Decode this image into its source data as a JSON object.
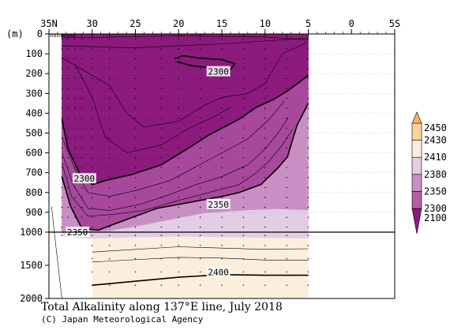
{
  "chart_data": {
    "type": "heatmap",
    "title": "Total Alkalinity along 137°E line, July 2018",
    "credit": "(C) Japan Meteorological Agency",
    "x_axis": {
      "ticks": [
        {
          "value": 35,
          "label": "35N"
        },
        {
          "value": 30,
          "label": "30"
        },
        {
          "value": 25,
          "label": "25"
        },
        {
          "value": 20,
          "label": "20"
        },
        {
          "value": 15,
          "label": "15"
        },
        {
          "value": 10,
          "label": "10"
        },
        {
          "value": 5,
          "label": "5"
        },
        {
          "value": 0,
          "label": "0"
        },
        {
          "value": -5,
          "label": "5S"
        }
      ],
      "range": [
        35,
        -5
      ]
    },
    "y_axis": {
      "unit_label": "(m)",
      "ticks": [
        0,
        100,
        200,
        300,
        400,
        500,
        600,
        700,
        800,
        900,
        1000,
        1500,
        2000
      ],
      "tick_labels": [
        "0",
        "100",
        "200",
        "300",
        "400",
        "500",
        "600",
        "700",
        "800",
        "900",
        "1000",
        "1500",
        "2000"
      ],
      "range": [
        0,
        2000
      ],
      "scale_break": 1000
    },
    "legend": {
      "levels": [
        "2100",
        "2300",
        "2350",
        "2380",
        "2410",
        "2430",
        "2450"
      ],
      "colors": [
        "#8c1a7d",
        "#b35fa7",
        "#c98fc4",
        "#e3cde5",
        "#fceedd",
        "#fbd49a",
        "#f7b45c"
      ],
      "placement": "right"
    },
    "contour_labels": [
      {
        "text": "2300",
        "lat": 15.4,
        "depth": 190
      },
      {
        "text": "2300",
        "lat": 30.9,
        "depth": 730
      },
      {
        "text": "2350",
        "lat": 15.4,
        "depth": 860
      },
      {
        "text": "2350",
        "lat": 31.7,
        "depth": 1000
      },
      {
        "text": "2400",
        "lat": 15.4,
        "depth": 1600
      }
    ],
    "bands": [
      {
        "level": "2100-2300",
        "color": "#8c1a7d",
        "polygon": [
          [
            33.5,
            0
          ],
          [
            5,
            0
          ],
          [
            5,
            210
          ],
          [
            7.5,
            290
          ],
          [
            9,
            330
          ],
          [
            11,
            370
          ],
          [
            13,
            430
          ],
          [
            16.5,
            510
          ],
          [
            19,
            580
          ],
          [
            22,
            660
          ],
          [
            25.5,
            710
          ],
          [
            28.5,
            740
          ],
          [
            30,
            760
          ],
          [
            31.5,
            700
          ],
          [
            32.8,
            580
          ],
          [
            33.5,
            430
          ]
        ]
      },
      {
        "level": "2300-2350",
        "color": "#a7489c",
        "polygon": [
          [
            33.5,
            430
          ],
          [
            32.8,
            580
          ],
          [
            31.5,
            700
          ],
          [
            30,
            760
          ],
          [
            28.5,
            740
          ],
          [
            25.5,
            710
          ],
          [
            22,
            660
          ],
          [
            19,
            580
          ],
          [
            16.5,
            510
          ],
          [
            13,
            430
          ],
          [
            11,
            370
          ],
          [
            9,
            330
          ],
          [
            7.5,
            290
          ],
          [
            5,
            210
          ],
          [
            5,
            350
          ],
          [
            6.3,
            460
          ],
          [
            7,
            560
          ],
          [
            7.4,
            620
          ],
          [
            8.6,
            680
          ],
          [
            10.5,
            760
          ],
          [
            13,
            800
          ],
          [
            15,
            820
          ],
          [
            17.5,
            840
          ],
          [
            20,
            860
          ],
          [
            22.5,
            880
          ],
          [
            25,
            920
          ],
          [
            27.5,
            960
          ],
          [
            29.3,
            990
          ],
          [
            31.2,
            980
          ],
          [
            32.5,
            870
          ],
          [
            33.5,
            720
          ]
        ]
      },
      {
        "level": "2300-2350 (lower)",
        "color": "#c98fc4",
        "polygon": [
          [
            5,
            350
          ],
          [
            6.3,
            460
          ],
          [
            7,
            560
          ],
          [
            7.4,
            620
          ],
          [
            8.6,
            680
          ],
          [
            10.5,
            760
          ],
          [
            13,
            800
          ],
          [
            15,
            820
          ],
          [
            17.5,
            840
          ],
          [
            20,
            860
          ],
          [
            22.5,
            880
          ],
          [
            25,
            920
          ],
          [
            27.5,
            960
          ],
          [
            29.3,
            990
          ],
          [
            31.2,
            980
          ],
          [
            32.5,
            870
          ],
          [
            33.5,
            720
          ],
          [
            33.5,
            1000
          ],
          [
            30.5,
            1000
          ],
          [
            28,
            995
          ],
          [
            24,
            965
          ],
          [
            20,
            930
          ],
          [
            17,
            905
          ],
          [
            12,
            890
          ],
          [
            8.5,
            885
          ],
          [
            5,
            890
          ]
        ]
      },
      {
        "level": "2350-2380",
        "color": "#e3cde5",
        "polygon": [
          [
            33.5,
            1000
          ],
          [
            30.5,
            1000
          ],
          [
            28,
            995
          ],
          [
            24,
            965
          ],
          [
            20,
            930
          ],
          [
            17,
            905
          ],
          [
            12,
            890
          ],
          [
            8.5,
            885
          ],
          [
            5,
            890
          ],
          [
            5,
            1000
          ],
          [
            5,
            1100
          ],
          [
            20,
            1070
          ],
          [
            30,
            1100
          ],
          [
            33.5,
            1060
          ]
        ]
      },
      {
        "level": "2380-2410",
        "color": "#fceedd",
        "polygon": [
          [
            30,
            1100
          ],
          [
            20,
            1070
          ],
          [
            5,
            1100
          ],
          [
            5,
            2000
          ],
          [
            30,
            2000
          ]
        ]
      }
    ],
    "contour_lines": [
      {
        "bold": true,
        "points": [
          [
            20.2,
            140
          ],
          [
            18.5,
            160
          ],
          [
            15.5,
            175
          ],
          [
            14,
            180
          ],
          [
            13.5,
            150
          ],
          [
            15,
            130
          ],
          [
            18,
            120
          ],
          [
            19.5,
            110
          ],
          [
            20.5,
            125
          ]
        ]
      },
      {
        "bold": true,
        "points": [
          [
            33.5,
            430
          ],
          [
            32.8,
            580
          ],
          [
            31.5,
            700
          ],
          [
            30,
            760
          ],
          [
            28.5,
            740
          ],
          [
            25.5,
            710
          ],
          [
            22,
            660
          ],
          [
            19,
            580
          ],
          [
            16.5,
            510
          ],
          [
            13,
            430
          ],
          [
            11,
            370
          ],
          [
            9,
            330
          ],
          [
            7.5,
            290
          ],
          [
            5,
            210
          ]
        ]
      },
      {
        "bold": true,
        "points": [
          [
            33.5,
            720
          ],
          [
            32.5,
            870
          ],
          [
            31.2,
            980
          ],
          [
            29.3,
            990
          ],
          [
            27.5,
            960
          ],
          [
            25,
            920
          ],
          [
            22.5,
            880
          ],
          [
            20,
            860
          ],
          [
            17.5,
            840
          ],
          [
            15,
            820
          ],
          [
            13,
            800
          ],
          [
            10.5,
            760
          ],
          [
            8.6,
            680
          ],
          [
            7.4,
            620
          ],
          [
            7,
            560
          ],
          [
            6.3,
            460
          ],
          [
            5,
            350
          ]
        ]
      },
      {
        "bold": true,
        "points": [
          [
            30,
            1800
          ],
          [
            20,
            1680
          ],
          [
            15,
            1640
          ],
          [
            10,
            1650
          ],
          [
            5,
            1650
          ]
        ]
      },
      {
        "bold": false,
        "points": [
          [
            33.5,
            60
          ],
          [
            25,
            70
          ],
          [
            15,
            50
          ],
          [
            8,
            30
          ],
          [
            5,
            20
          ]
        ]
      },
      {
        "bold": false,
        "points": [
          [
            33.5,
            120
          ],
          [
            28,
            260
          ],
          [
            26,
            400
          ],
          [
            24,
            470
          ],
          [
            20,
            440
          ],
          [
            17,
            360
          ],
          [
            15,
            320
          ],
          [
            12,
            300
          ],
          [
            10,
            250
          ],
          [
            8,
            100
          ],
          [
            6,
            60
          ],
          [
            5,
            40
          ]
        ]
      },
      {
        "bold": false,
        "points": [
          [
            32,
            150
          ],
          [
            30,
            320
          ],
          [
            28.5,
            520
          ],
          [
            26,
            600
          ],
          [
            22,
            560
          ],
          [
            19,
            480
          ],
          [
            16,
            420
          ],
          [
            14,
            370
          ]
        ]
      },
      {
        "bold": false,
        "points": [
          [
            33.5,
            520
          ],
          [
            32,
            680
          ],
          [
            30.5,
            800
          ],
          [
            28,
            820
          ],
          [
            25,
            790
          ],
          [
            21,
            740
          ],
          [
            18,
            670
          ],
          [
            15,
            600
          ],
          [
            12,
            530
          ],
          [
            9.5,
            430
          ],
          [
            7.8,
            340
          ]
        ]
      },
      {
        "bold": false,
        "points": [
          [
            33.5,
            600
          ],
          [
            32.2,
            760
          ],
          [
            30.5,
            880
          ],
          [
            28,
            890
          ],
          [
            24.5,
            860
          ],
          [
            21,
            810
          ],
          [
            18,
            760
          ],
          [
            15,
            720
          ],
          [
            12,
            660
          ],
          [
            10,
            580
          ],
          [
            8.5,
            500
          ],
          [
            7.3,
            420
          ]
        ]
      },
      {
        "bold": false,
        "points": [
          [
            33.5,
            650
          ],
          [
            32.4,
            820
          ],
          [
            30.5,
            920
          ],
          [
            27.5,
            910
          ],
          [
            24,
            890
          ],
          [
            20,
            840
          ],
          [
            16.5,
            800
          ],
          [
            13,
            760
          ],
          [
            11,
            700
          ],
          [
            9.5,
            640
          ],
          [
            8,
            560
          ],
          [
            6.8,
            480
          ]
        ]
      },
      {
        "bold": false,
        "points": [
          [
            30,
            1300
          ],
          [
            20,
            1220
          ],
          [
            15,
            1240
          ],
          [
            10,
            1260
          ],
          [
            5,
            1250
          ]
        ]
      },
      {
        "bold": false,
        "points": [
          [
            30,
            1450
          ],
          [
            20,
            1380
          ],
          [
            15,
            1390
          ],
          [
            10,
            1420
          ],
          [
            5,
            1420
          ]
        ]
      },
      {
        "bold": false,
        "points": [
          [
            33.5,
            20
          ],
          [
            20,
            10
          ],
          [
            10,
            15
          ],
          [
            5,
            30
          ]
        ]
      }
    ],
    "sample_stations": [
      33.5,
      32.8,
      32,
      31.2,
      30,
      28,
      25,
      22,
      20,
      17.5,
      15,
      12.5,
      10,
      7.5,
      5
    ],
    "sample_depths": [
      25,
      75,
      125,
      175,
      225,
      275,
      325,
      375,
      425,
      475,
      525,
      575,
      625,
      675,
      725,
      775,
      825,
      875,
      925,
      975,
      1050,
      1200,
      1400,
      1600,
      1800
    ]
  }
}
